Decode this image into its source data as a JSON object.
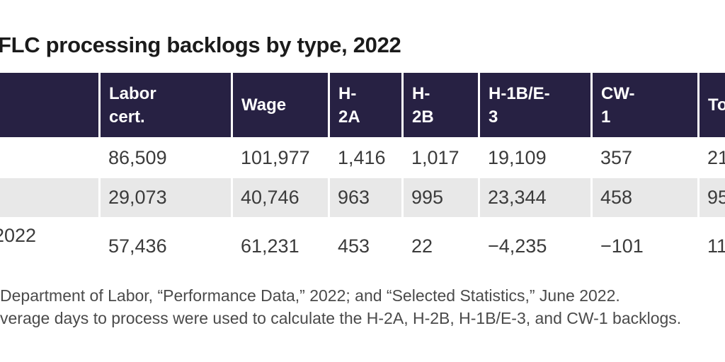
{
  "title": "FLC processing backlogs by type, 2022",
  "table": {
    "columns": [
      {
        "label": ""
      },
      {
        "label": "Labor\ncert."
      },
      {
        "label": "Wage"
      },
      {
        "label": "H-\n2A"
      },
      {
        "label": "H-\n2B"
      },
      {
        "label": "H-1B/E-\n3"
      },
      {
        "label": "CW-\n1"
      },
      {
        "label": "To"
      }
    ],
    "rows": [
      {
        "cells": [
          "",
          "86,509",
          "101,977",
          "1,416",
          "1,017",
          "19,109",
          "357",
          "21"
        ]
      },
      {
        "cells": [
          "",
          "29,073",
          "40,746",
          "963",
          "995",
          "23,344",
          "458",
          "95"
        ]
      },
      {
        "cells": [
          "2022",
          "57,436",
          "61,231",
          "453",
          "22",
          "−4,235",
          "−101",
          "11"
        ]
      }
    ]
  },
  "notes": {
    "line1": "Department of Labor, “Performance Data,” 2022; and “Selected Statistics,” June 2022.",
    "line2": "verage days to process were used to calculate the H-2A, H-2B, H-1B/E-3, and CW-1 backlogs."
  },
  "colors": {
    "header_bg": "#272143",
    "header_text": "#ffffff",
    "zebra_row_bg": "#e8e8e8",
    "body_text": "#3b3b3b",
    "title_text": "#1b1b1b",
    "note_text": "#4a4a4a",
    "page_bg": "#ffffff"
  }
}
